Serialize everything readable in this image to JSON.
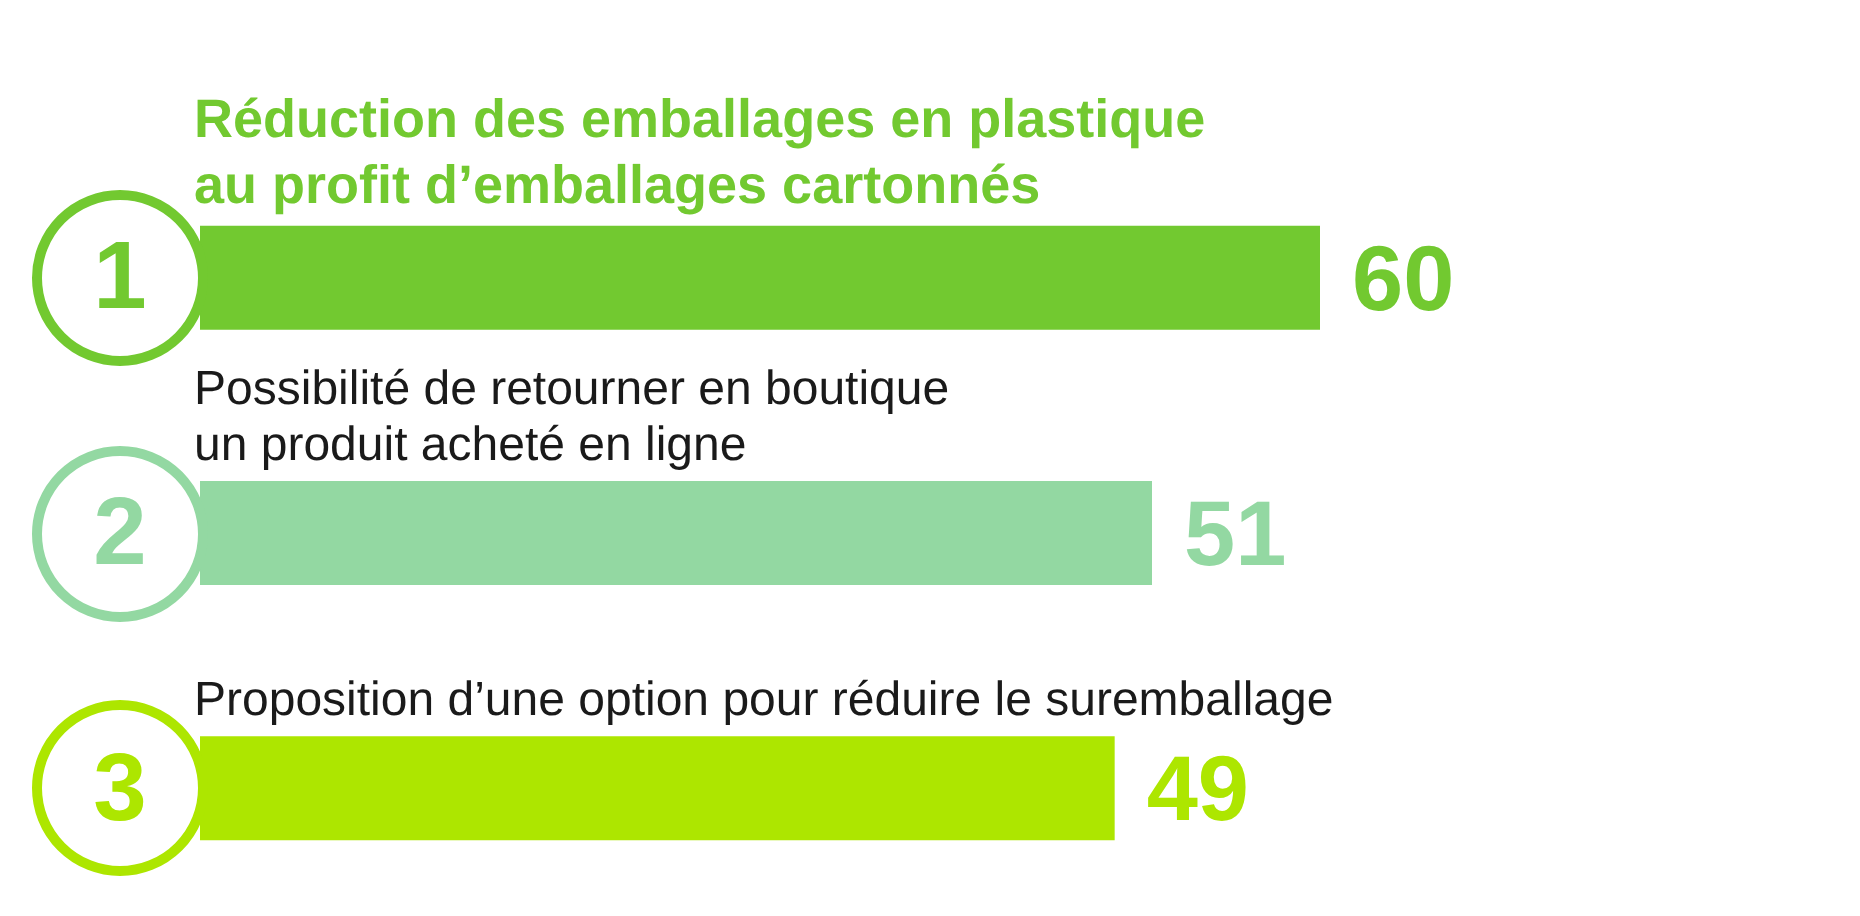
{
  "chart_data": {
    "type": "bar",
    "orientation": "horizontal",
    "categories": [
      "Réduction des emballages en plastique\nau profit d’emballages cartonnés",
      "Possibilité de retourner en boutique\nun produit acheté en ligne",
      "Proposition d’une option pour réduire le suremballage"
    ],
    "values": [
      60,
      51,
      49
    ],
    "colors": [
      "#72c930",
      "#93d8a2",
      "#ade600"
    ],
    "annotations": [
      "1",
      "2",
      "3"
    ],
    "data_labels": true
  }
}
